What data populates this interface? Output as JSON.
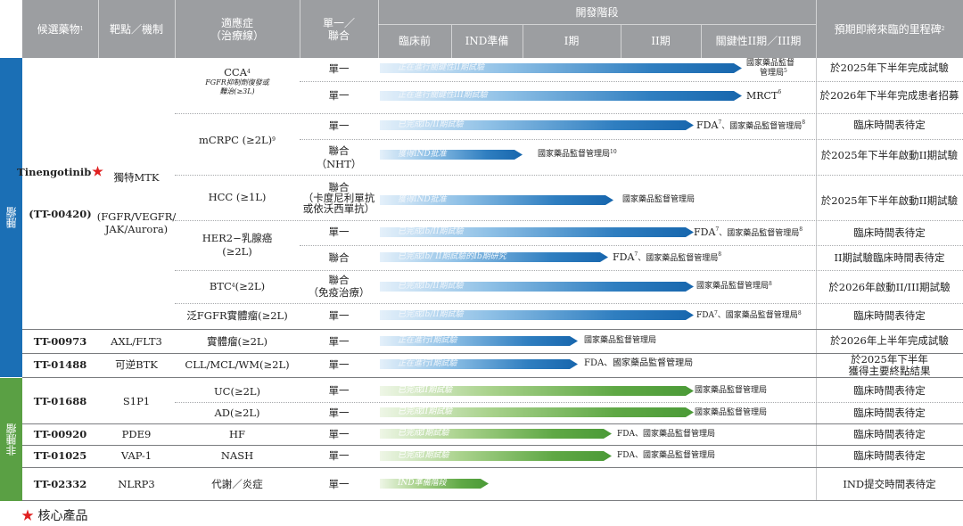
{
  "header": {
    "candidate": "候選藥物",
    "candidate_sup": "1",
    "target": "靶點／機制",
    "indication": "適應症",
    "indication_sub": "（治療線）",
    "mono": "單一／",
    "combo": "聯合",
    "stage": "開發階段",
    "preclinical": "臨床前",
    "ind_prep": "IND準備",
    "phase1": "I期",
    "phase2": "II期",
    "pivotal": "關鍵性II期／III期",
    "milestone": "預期即將來臨的里程碑",
    "milestone_sup": "2"
  },
  "sections": {
    "oncology": "腫瘤",
    "non_oncology": "非腫瘤"
  },
  "drug_tinen": {
    "name": "Tinengotinib",
    "code": "(TT-00420)",
    "target1": "獨特MTK",
    "target2": "(FGFR/VEGFR/",
    "target3": "JAK/Aurora)"
  },
  "ind": {
    "cca": "CCA",
    "cca_sup": "4",
    "cca_sub1": "FGFR抑制劑復發或",
    "cca_sub2": "難治(≥3L)",
    "mcrpc": "mCRPC (≥2L)",
    "mcrpc_sup": "9",
    "hcc": "HCC (≥1L)",
    "her2a": "HER2−乳腺癌",
    "her2b": "(≥2L)",
    "btc": "BTC",
    "btc_sup": "4",
    "btc_rest": "(≥2L)",
    "fgfr": "泛FGFR實體瘤(≥2L)",
    "solid": "實體瘤(≥2L)",
    "cll": "CLL/MCL/WM(≥2L)",
    "uc": "UC(≥2L)",
    "ad": "AD(≥2L)",
    "hf": "HF",
    "nash": "NASH",
    "metab": "代謝／炎症"
  },
  "mode": {
    "mono": "單一",
    "combo": "聯合",
    "nht": "（NHT）",
    "hcc1": "聯合",
    "hcc2": "（卡度尼利單抗",
    "hcc3": "或依沃西單抗）",
    "btc1": "聯合",
    "btc2": "（免疫治療）"
  },
  "bars": {
    "b1": "正在進行關鍵性II期試驗",
    "b2": "正在進行關鍵性III期試驗",
    "b3": "已完成Ib/II期試驗",
    "b4": "獲得IND批准",
    "b5": "獲得IND批准",
    "b6": "已完成Ib/II期試驗",
    "b7": "已完成Ib/ II期試驗的Ib期研究",
    "b8": "已完成Ib/II期試驗",
    "b9": "已完成Ib/II期試驗",
    "b10": "正在進行I期試驗",
    "b11": "正在進行I期試驗",
    "b12": "已完成II期試驗",
    "b13": "已完成II期試驗",
    "b14": "已完成I期試驗",
    "b15": "已完成I期試驗",
    "b16": "IND準備階段"
  },
  "reg": {
    "r1a": "國家藥品監督",
    "r1b": "管理局",
    "r1_sup": "5",
    "r2": "MRCT",
    "r2_sup": "6",
    "r3": "FDA",
    "r3_sup": "7",
    "r3b": "、國家藥品監督管理局",
    "r3b_sup": "8",
    "r4": "國家藥品監督管理局",
    "r4_sup": "10",
    "r5": "國家藥品監督管理局",
    "r6": "FDA",
    "r6_sup": "7",
    "r6b": "、國家藥品監督管理局",
    "r6b_sup": "8",
    "r7": "FDA",
    "r7_sup": "7",
    "r7b": "、國家藥品監督管理局",
    "r7b_sup": "8",
    "r8": "國家藥品監督管理局",
    "r8_sup": "8",
    "r9": "FDA",
    "r9_sup": "7",
    "r9b": "、國家藥品監督管理局",
    "r9b_sup": "8",
    "r10": "國家藥品監督管理局",
    "r11": "FDA、國家藥品監督管理局",
    "r12": "國家藥品監督管理局",
    "r13": "國家藥品監督管理局",
    "r14": "FDA、國家藥品監督管理局",
    "r15": "FDA、國家藥品監督管理局"
  },
  "ms": {
    "m1": "於2025年下半年完成試驗",
    "m2": "於2026年下半年完成患者招募",
    "m3": "臨床時間表待定",
    "m4": "於2025年下半年啟動II期試驗",
    "m5": "於2025年下半年啟動II期試驗",
    "m6": "臨床時間表待定",
    "m7": "II期試驗臨床時間表待定",
    "m8": "於2026年啟動II/III期試驗",
    "m9": "臨床時間表待定",
    "m10": "於2026年上半年完成試驗",
    "m11a": "於2025年下半年",
    "m11b": "獲得主要終點結果",
    "m12": "臨床時間表待定",
    "m13": "臨床時間表待定",
    "m14": "臨床時間表待定",
    "m15": "臨床時間表待定",
    "m16": "IND提交時間表待定"
  },
  "drugs": {
    "d973": "TT-00973",
    "t973": "AXL/FLT3",
    "d1488": "TT-01488",
    "t1488": "可逆BTK",
    "d1688": "TT-01688",
    "t1688": "S1P1",
    "d920": "TT-00920",
    "t920": "PDE9",
    "d1025": "TT-01025",
    "t1025": "VAP-1",
    "d2332": "TT-02332",
    "t2332": "NLRP3"
  },
  "legend": {
    "star": "★",
    "label": "核心產品"
  },
  "colors": {
    "header": "#9c9ea1",
    "oncology": "#1b6fb5",
    "non_oncology": "#5aa044"
  }
}
